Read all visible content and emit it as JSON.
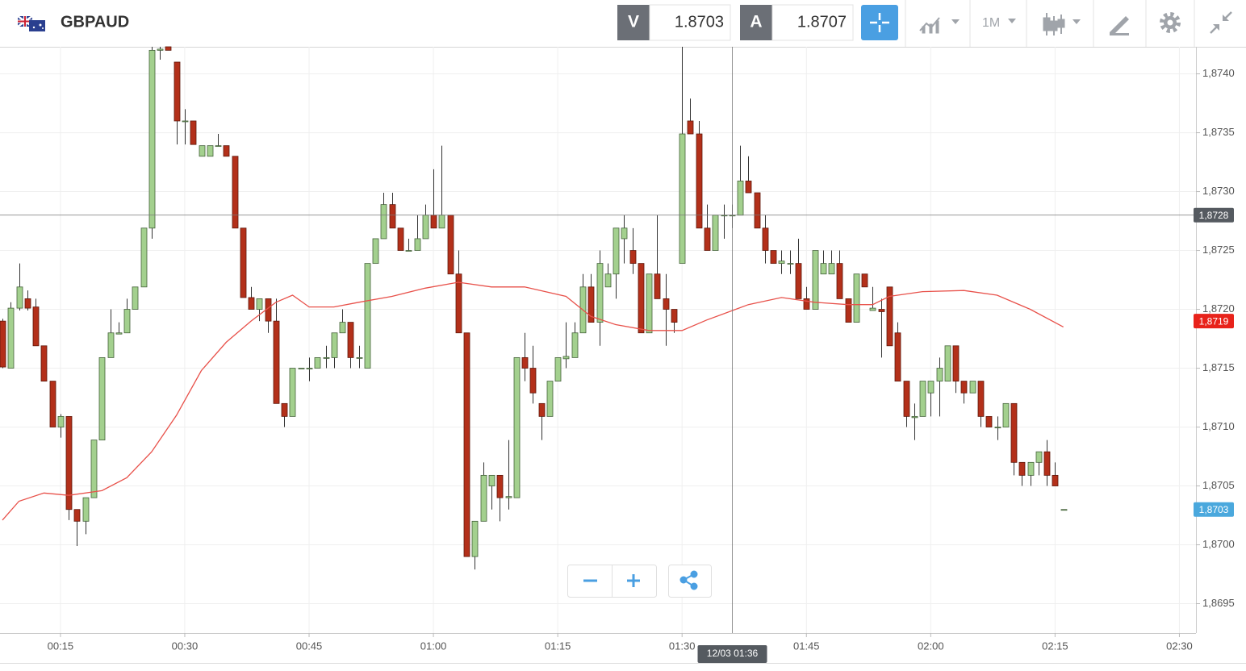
{
  "header": {
    "symbol": "GBPAUD",
    "bid_label": "V",
    "bid": "1.8703",
    "ask_label": "A",
    "ask": "1.8707",
    "timeframe": "1M"
  },
  "chart_data": {
    "type": "candlestick",
    "x": [
      "00:08",
      "00:09",
      "00:10",
      "00:11",
      "00:12",
      "00:13",
      "00:14",
      "00:15",
      "00:16",
      "00:17",
      "00:18",
      "00:19",
      "00:20",
      "00:21",
      "00:22",
      "00:23",
      "00:24",
      "00:25",
      "00:26",
      "00:27",
      "00:28",
      "00:29",
      "00:30",
      "00:31",
      "00:32",
      "00:33",
      "00:34",
      "00:35",
      "00:36",
      "00:37",
      "00:38",
      "00:39",
      "00:40",
      "00:41",
      "00:42",
      "00:43",
      "00:44",
      "00:45",
      "00:46",
      "00:47",
      "00:48",
      "00:49",
      "00:50",
      "00:51",
      "00:52",
      "00:53",
      "00:54",
      "00:55",
      "00:56",
      "00:57",
      "00:58",
      "00:59",
      "01:00",
      "01:01",
      "01:02",
      "01:03",
      "01:04",
      "01:05",
      "01:06",
      "01:07",
      "01:08",
      "01:09",
      "01:10",
      "01:11",
      "01:12",
      "01:13",
      "01:14",
      "01:15",
      "01:16",
      "01:17",
      "01:18",
      "01:19",
      "01:20",
      "01:21",
      "01:22",
      "01:23",
      "01:24",
      "01:25",
      "01:26",
      "01:27",
      "01:28",
      "01:29",
      "01:30",
      "01:31",
      "01:32",
      "01:33",
      "01:34",
      "01:35",
      "01:36",
      "01:37",
      "01:38",
      "01:39",
      "01:40",
      "01:41",
      "01:42",
      "01:43",
      "01:44",
      "01:45",
      "01:46",
      "01:47",
      "01:48",
      "01:49",
      "01:50",
      "01:51",
      "01:52",
      "01:53",
      "01:54",
      "01:55",
      "01:56",
      "01:57",
      "01:58",
      "01:59",
      "02:00",
      "02:01",
      "02:02",
      "02:03",
      "02:04",
      "02:05",
      "02:06",
      "02:07",
      "02:08",
      "02:09",
      "02:10",
      "02:11",
      "02:12",
      "02:13",
      "02:14",
      "02:15",
      "02:16"
    ],
    "open": [
      1.8719,
      1.8715,
      1.87201,
      1.87209,
      1.87202,
      1.87169,
      1.87139,
      1.871,
      1.87109,
      1.8703,
      1.8702,
      1.8704,
      1.87089,
      1.87159,
      1.87179,
      1.8718,
      1.872,
      1.87219,
      1.87269,
      1.8742,
      1.87423,
      1.8741,
      1.8736,
      1.8736,
      1.8733,
      1.8733,
      1.87339,
      1.87339,
      1.8733,
      1.87269,
      1.8721,
      1.872,
      1.87209,
      1.8719,
      1.8712,
      1.87109,
      1.8715,
      1.8715,
      1.8715,
      1.87159,
      1.87159,
      1.8718,
      1.87189,
      1.87159,
      1.8715,
      1.87239,
      1.8726,
      1.87289,
      1.87269,
      1.8725,
      1.8725,
      1.8726,
      1.8728,
      1.87269,
      1.8728,
      1.8723,
      1.8718,
      1.8699,
      1.8702,
      1.8705,
      1.87059,
      1.8704,
      1.8704,
      1.87159,
      1.8715,
      1.8712,
      1.87109,
      1.87139,
      1.87158,
      1.87159,
      1.8718,
      1.87219,
      1.87189,
      1.87219,
      1.8723,
      1.8726,
      1.8725,
      1.87239,
      1.8718,
      1.8723,
      1.87209,
      1.872,
      1.87239,
      1.8736,
      1.87349,
      1.87269,
      1.8725,
      1.8728,
      1.8728,
      1.8728,
      1.87309,
      1.87299,
      1.87269,
      1.8725,
      1.87239,
      1.87239,
      1.87239,
      1.87209,
      1.872,
      1.8723,
      1.8723,
      1.87239,
      1.87209,
      1.87189,
      1.8723,
      1.87199,
      1.872,
      1.87219,
      1.8718,
      1.87139,
      1.87108,
      1.87109,
      1.87129,
      1.87139,
      1.87139,
      1.87169,
      1.87139,
      1.87129,
      1.87139,
      1.87109,
      1.871,
      1.871,
      1.8712,
      1.8707,
      1.87059,
      1.8707,
      1.87079,
      1.87059,
      1.8703
    ],
    "high": [
      1.87192,
      1.87206,
      1.87239,
      1.87216,
      1.87209,
      1.87169,
      1.87139,
      1.87111,
      1.87109,
      1.8703,
      1.8704,
      1.87089,
      1.87159,
      1.872,
      1.87189,
      1.87209,
      1.87219,
      1.87269,
      1.87423,
      1.87423,
      1.87423,
      1.8741,
      1.8737,
      1.8736,
      1.87339,
      1.87339,
      1.87349,
      1.87339,
      1.8733,
      1.87269,
      1.87219,
      1.87209,
      1.87209,
      1.87209,
      1.8712,
      1.8715,
      1.8715,
      1.87159,
      1.87159,
      1.87169,
      1.8718,
      1.872,
      1.87189,
      1.87169,
      1.87239,
      1.8726,
      1.87299,
      1.87299,
      1.87269,
      1.8726,
      1.8728,
      1.87289,
      1.87319,
      1.87339,
      1.8728,
      1.8725,
      1.8718,
      1.8702,
      1.8707,
      1.87059,
      1.87059,
      1.87089,
      1.87159,
      1.8718,
      1.87169,
      1.8712,
      1.87139,
      1.87159,
      1.87189,
      1.87189,
      1.8723,
      1.8723,
      1.8725,
      1.87239,
      1.87269,
      1.8728,
      1.87269,
      1.87239,
      1.8723,
      1.8728,
      1.8723,
      1.872,
      1.87423,
      1.87379,
      1.8736,
      1.87289,
      1.8728,
      1.87289,
      1.87289,
      1.87339,
      1.8733,
      1.87299,
      1.8728,
      1.8725,
      1.8725,
      1.8725,
      1.8726,
      1.87219,
      1.8725,
      1.8725,
      1.8725,
      1.8725,
      1.87209,
      1.8723,
      1.8723,
      1.87219,
      1.87209,
      1.87219,
      1.87189,
      1.87139,
      1.8712,
      1.87139,
      1.87139,
      1.87159,
      1.87169,
      1.87169,
      1.87139,
      1.87139,
      1.87139,
      1.87109,
      1.87109,
      1.8712,
      1.8712,
      1.8707,
      1.8707,
      1.87079,
      1.87089,
      1.8707,
      1.8703
    ],
    "low": [
      1.8715,
      1.8715,
      1.87199,
      1.87199,
      1.87169,
      1.87139,
      1.871,
      1.87091,
      1.87021,
      1.86999,
      1.87009,
      1.8704,
      1.87089,
      1.87159,
      1.87179,
      1.8718,
      1.872,
      1.87219,
      1.8726,
      1.87412,
      1.8742,
      1.8734,
      1.8734,
      1.8734,
      1.8733,
      1.8733,
      1.87339,
      1.8733,
      1.87269,
      1.8721,
      1.872,
      1.8719,
      1.8718,
      1.8712,
      1.871,
      1.87109,
      1.8715,
      1.87139,
      1.8715,
      1.8715,
      1.8715,
      1.8718,
      1.8715,
      1.8715,
      1.8715,
      1.87239,
      1.8726,
      1.87269,
      1.8725,
      1.8725,
      1.8725,
      1.8726,
      1.87269,
      1.87269,
      1.8723,
      1.8718,
      1.8699,
      1.86979,
      1.8702,
      1.8703,
      1.8702,
      1.8703,
      1.8704,
      1.87139,
      1.8712,
      1.87089,
      1.87109,
      1.87139,
      1.8715,
      1.87159,
      1.8718,
      1.87189,
      1.87169,
      1.87219,
      1.87209,
      1.87239,
      1.8723,
      1.8718,
      1.8718,
      1.87209,
      1.87169,
      1.8718,
      1.87239,
      1.87349,
      1.87269,
      1.8725,
      1.8725,
      1.8726,
      1.87269,
      1.8728,
      1.87299,
      1.87269,
      1.87239,
      1.87239,
      1.8723,
      1.8723,
      1.87209,
      1.872,
      1.872,
      1.8723,
      1.8723,
      1.87209,
      1.87189,
      1.87189,
      1.87219,
      1.87199,
      1.87159,
      1.87169,
      1.87139,
      1.871,
      1.87089,
      1.87109,
      1.87109,
      1.87109,
      1.87139,
      1.87129,
      1.8712,
      1.87129,
      1.871,
      1.871,
      1.87089,
      1.871,
      1.87059,
      1.8705,
      1.8705,
      1.87059,
      1.8705,
      1.8705,
      1.8703
    ],
    "close": [
      1.87151,
      1.87201,
      1.87219,
      1.87201,
      1.87169,
      1.87139,
      1.871,
      1.87109,
      1.8703,
      1.8702,
      1.8704,
      1.87089,
      1.87159,
      1.8718,
      1.8718,
      1.872,
      1.87219,
      1.87269,
      1.8742,
      1.87421,
      1.8742,
      1.8736,
      1.8736,
      1.8734,
      1.87339,
      1.87339,
      1.87339,
      1.8733,
      1.87269,
      1.8721,
      1.872,
      1.87209,
      1.8719,
      1.8712,
      1.87109,
      1.8715,
      1.8715,
      1.8715,
      1.87159,
      1.87159,
      1.8718,
      1.87189,
      1.87159,
      1.87159,
      1.87239,
      1.8726,
      1.87289,
      1.87269,
      1.8725,
      1.8725,
      1.8726,
      1.8728,
      1.87269,
      1.8728,
      1.8723,
      1.8718,
      1.8699,
      1.8702,
      1.87059,
      1.87059,
      1.8704,
      1.87041,
      1.87159,
      1.8715,
      1.87129,
      1.87109,
      1.87139,
      1.87159,
      1.8716,
      1.8718,
      1.87219,
      1.87189,
      1.87239,
      1.8723,
      1.87269,
      1.87269,
      1.87239,
      1.8718,
      1.8723,
      1.87209,
      1.872,
      1.87189,
      1.87349,
      1.87349,
      1.87269,
      1.8725,
      1.8728,
      1.8728,
      1.8728,
      1.87309,
      1.87299,
      1.87269,
      1.8725,
      1.87239,
      1.87241,
      1.87239,
      1.87209,
      1.872,
      1.8725,
      1.87239,
      1.87239,
      1.87209,
      1.87189,
      1.8723,
      1.87219,
      1.87201,
      1.87198,
      1.87169,
      1.87139,
      1.87109,
      1.87109,
      1.87139,
      1.87139,
      1.8715,
      1.87169,
      1.87139,
      1.87129,
      1.87139,
      1.87109,
      1.871,
      1.871,
      1.8712,
      1.8707,
      1.87059,
      1.8707,
      1.87079,
      1.87059,
      1.8705,
      1.8703
    ],
    "up_color": "#a3d08e",
    "down_color": "#b3301a",
    "ma": {
      "color": "#e8514a",
      "x": [
        "00:08",
        "00:10",
        "00:13",
        "00:16",
        "00:20",
        "00:23",
        "00:26",
        "00:29",
        "00:32",
        "00:35",
        "00:38",
        "00:41",
        "00:43",
        "00:45",
        "00:48",
        "00:51",
        "00:55",
        "00:59",
        "01:03",
        "01:07",
        "01:11",
        "01:16",
        "01:19",
        "01:22",
        "01:26",
        "01:30",
        "01:33",
        "01:38",
        "01:42",
        "01:46",
        "01:50",
        "01:53",
        "01:55",
        "01:59",
        "02:04",
        "02:08",
        "02:12",
        "02:16"
      ],
      "values": [
        1.87021,
        1.87037,
        1.87044,
        1.87042,
        1.87046,
        1.87057,
        1.87079,
        1.8711,
        1.87148,
        1.87172,
        1.8719,
        1.87206,
        1.87212,
        1.87202,
        1.87202,
        1.87206,
        1.87211,
        1.87218,
        1.87223,
        1.87219,
        1.87219,
        1.87211,
        1.87194,
        1.87187,
        1.87182,
        1.87182,
        1.87191,
        1.87204,
        1.8721,
        1.87206,
        1.87204,
        1.87204,
        1.87211,
        1.87215,
        1.87216,
        1.87212,
        1.872,
        1.87185
      ]
    },
    "xlim": [
      "00:08",
      "02:32"
    ],
    "xticks": [
      "00:15",
      "00:30",
      "00:45",
      "01:00",
      "01:15",
      "01:30",
      "01:45",
      "02:00",
      "02:15",
      "02:30"
    ],
    "ylim": [
      1.86925,
      1.87423
    ],
    "yticks": [
      {
        "value": 1.8695,
        "label": "1,8695"
      },
      {
        "value": 1.87,
        "label": "1,8700"
      },
      {
        "value": 1.8705,
        "label": "1,8705"
      },
      {
        "value": 1.871,
        "label": "1,8710"
      },
      {
        "value": 1.8715,
        "label": "1,8715"
      },
      {
        "value": 1.872,
        "label": "1,8720"
      },
      {
        "value": 1.8725,
        "label": "1,8725"
      },
      {
        "value": 1.873,
        "label": "1,8730"
      },
      {
        "value": 1.8735,
        "label": "1,8735"
      },
      {
        "value": 1.874,
        "label": "1,8740"
      }
    ],
    "grid": true,
    "crosshair": {
      "x": "01:36",
      "x_label": "12/03 01:36",
      "y": 1.8728,
      "y_label": "1,8728",
      "color": "#555a60"
    },
    "ma_marker": {
      "value": 1.8719,
      "label": "1,8719",
      "color": "#e8221a"
    },
    "price_marker": {
      "value": 1.8703,
      "label": "1,8703",
      "color": "#4aa8dd"
    }
  }
}
